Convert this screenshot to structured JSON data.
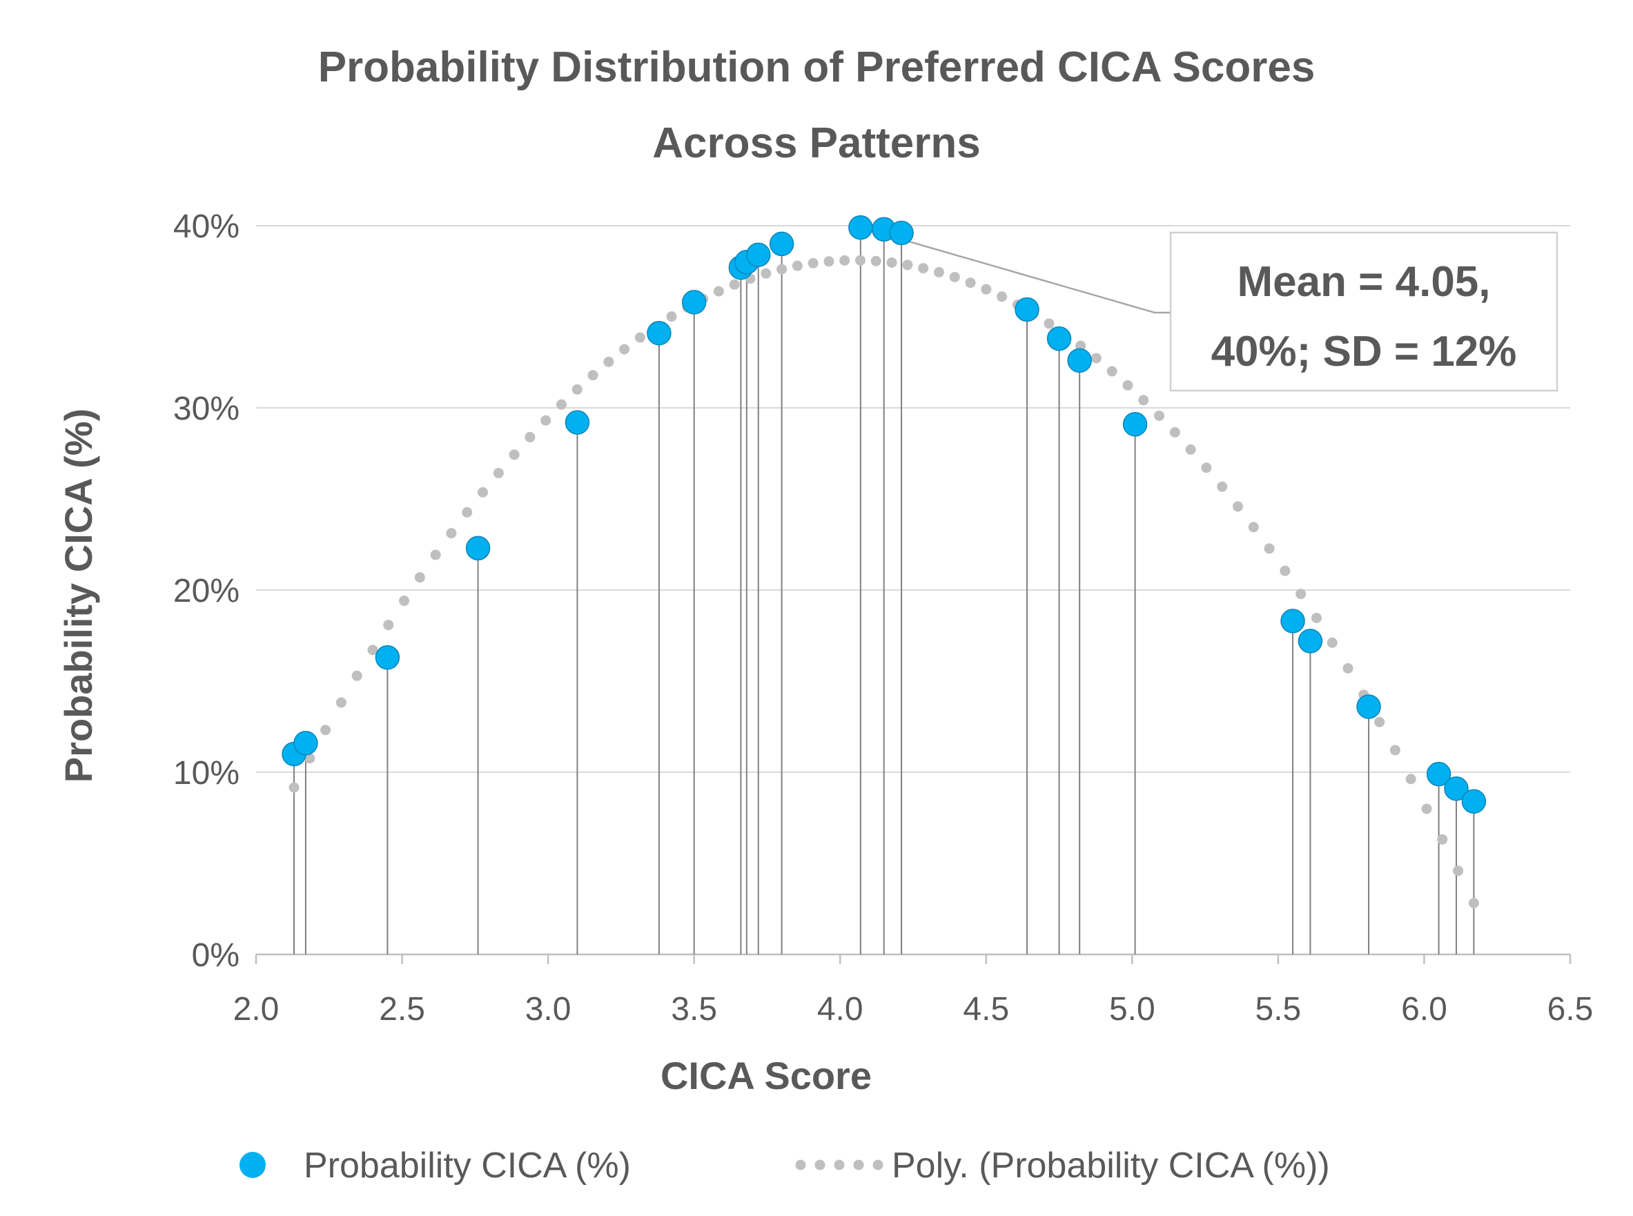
{
  "chart_data": {
    "type": "scatter",
    "title_line1": "Probability Distribution of Preferred CICA Scores",
    "title_line2": "Across Patterns",
    "xlabel": "CICA Score",
    "ylabel": "Probability CICA (%)",
    "xlim": [
      2.0,
      6.5
    ],
    "ylim": [
      0,
      40
    ],
    "x_ticks": [
      2.0,
      2.5,
      3.0,
      3.5,
      4.0,
      4.5,
      5.0,
      5.5,
      6.0,
      6.5
    ],
    "x_tick_labels": [
      "2.0",
      "2.5",
      "3.0",
      "3.5",
      "4.0",
      "4.5",
      "5.0",
      "5.5",
      "6.0",
      "6.5"
    ],
    "y_ticks": [
      0,
      10,
      20,
      30,
      40
    ],
    "y_tick_labels": [
      "0%",
      "10%",
      "20%",
      "30%",
      "40%"
    ],
    "grid": true,
    "drop_lines": true,
    "series": [
      {
        "name": "Probability CICA (%)",
        "color": "#00B0F0",
        "x": [
          2.13,
          2.17,
          2.45,
          2.76,
          3.1,
          3.38,
          3.5,
          3.66,
          3.68,
          3.72,
          3.8,
          4.07,
          4.15,
          4.21,
          4.64,
          4.75,
          4.82,
          5.01,
          5.55,
          5.61,
          5.81,
          6.05,
          6.11,
          6.17
        ],
        "y": [
          11.0,
          11.6,
          16.3,
          22.3,
          29.2,
          34.1,
          35.8,
          37.7,
          38.0,
          38.4,
          39.0,
          39.9,
          39.8,
          39.6,
          35.4,
          33.8,
          32.6,
          29.1,
          18.3,
          17.2,
          13.6,
          9.9,
          9.1,
          8.4
        ]
      }
    ],
    "trendline": {
      "name": "Poly. (Probability CICA (%))",
      "color": "#BFBFBF",
      "type": "polynomial",
      "order": 2,
      "x_range": [
        2.13,
        6.17
      ],
      "vertex_x": 4.05,
      "vertex_y": 38.1,
      "curvature": -7.85
    },
    "annotation": {
      "line1": "Mean = 4.05,",
      "line2": "40%; SD = 12%",
      "points_to": {
        "x": 4.07,
        "y": 39.9
      }
    },
    "legend": {
      "position": "bottom",
      "entries": [
        "Probability CICA (%)",
        "Poly. (Probability CICA (%))"
      ]
    }
  }
}
